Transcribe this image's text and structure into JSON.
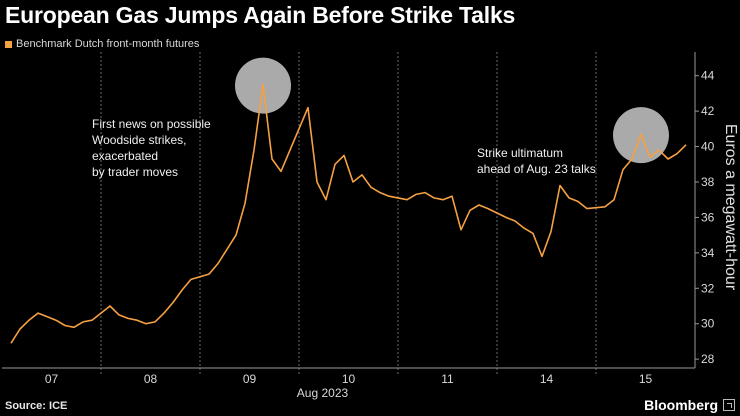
{
  "header": {
    "title": "European Gas Jumps Again Before Strike Talks"
  },
  "legend": {
    "label": "Benchmark Dutch front-month futures",
    "color": "#f5a043"
  },
  "footer": {
    "source": "Source: ICE",
    "brand": "Bloomberg"
  },
  "chart_data": {
    "type": "line",
    "title": "European Gas Jumps Again Before Strike Talks",
    "xlabel": "Aug 2023",
    "ylabel": "Euros a megawatt-hour",
    "ylim": [
      27.5,
      45
    ],
    "y_ticks": [
      28,
      30,
      32,
      34,
      36,
      38,
      40,
      42,
      44
    ],
    "x_tick_labels": [
      "07",
      "08",
      "09",
      "10",
      "11",
      "14",
      "15"
    ],
    "x_range": [
      "2023-08-07",
      "2023-08-16"
    ],
    "grid": "vertical day separators, dashed",
    "legend_position": "top-left",
    "series": [
      {
        "name": "Benchmark Dutch front-month futures",
        "color": "#f5a043",
        "x": [
          "2023-08-07 09:00",
          "2023-08-07 10:00",
          "2023-08-07 11:00",
          "2023-08-07 12:00",
          "2023-08-07 13:00",
          "2023-08-07 14:00",
          "2023-08-07 15:00",
          "2023-08-07 16:00",
          "2023-08-07 17:00",
          "2023-08-07 18:00",
          "2023-08-08 09:00",
          "2023-08-08 10:00",
          "2023-08-08 11:00",
          "2023-08-08 12:00",
          "2023-08-08 13:00",
          "2023-08-08 14:00",
          "2023-08-08 15:00",
          "2023-08-08 16:00",
          "2023-08-08 17:00",
          "2023-08-08 18:00",
          "2023-08-09 09:00",
          "2023-08-09 10:00",
          "2023-08-09 11:00",
          "2023-08-09 12:00",
          "2023-08-09 13:00",
          "2023-08-09 14:00",
          "2023-08-09 15:00",
          "2023-08-09 16:00",
          "2023-08-09 17:00",
          "2023-08-09 18:00",
          "2023-08-10 09:00",
          "2023-08-10 10:00",
          "2023-08-10 11:00",
          "2023-08-10 12:00",
          "2023-08-10 13:00",
          "2023-08-10 14:00",
          "2023-08-10 15:00",
          "2023-08-10 16:00",
          "2023-08-10 17:00",
          "2023-08-10 18:00",
          "2023-08-11 09:00",
          "2023-08-11 10:00",
          "2023-08-11 11:00",
          "2023-08-11 12:00",
          "2023-08-11 13:00",
          "2023-08-11 14:00",
          "2023-08-11 15:00",
          "2023-08-11 16:00",
          "2023-08-11 17:00",
          "2023-08-11 18:00",
          "2023-08-14 09:00",
          "2023-08-14 10:00",
          "2023-08-14 11:00",
          "2023-08-14 12:00",
          "2023-08-14 13:00",
          "2023-08-14 14:00",
          "2023-08-14 15:00",
          "2023-08-14 16:00",
          "2023-08-14 17:00",
          "2023-08-14 18:00",
          "2023-08-15 09:00",
          "2023-08-15 10:00",
          "2023-08-15 11:00",
          "2023-08-15 12:00",
          "2023-08-15 13:00",
          "2023-08-15 14:00",
          "2023-08-15 15:00",
          "2023-08-15 16:00",
          "2023-08-15 17:00",
          "2023-08-15 18:00"
        ],
        "values": [
          28.9,
          29.7,
          30.2,
          30.6,
          30.4,
          30.2,
          29.9,
          29.8,
          30.1,
          30.2,
          31.0,
          30.5,
          30.3,
          30.2,
          30.0,
          30.1,
          30.6,
          31.2,
          31.9,
          32.5,
          32.8,
          33.4,
          34.2,
          35.0,
          36.8,
          39.8,
          43.5,
          39.3,
          38.6,
          39.8,
          42.2,
          38.0,
          37.0,
          39.0,
          39.5,
          38.0,
          38.4,
          37.7,
          37.4,
          37.2,
          37.0,
          37.3,
          37.4,
          37.1,
          37.0,
          37.2,
          35.3,
          36.4,
          36.7,
          36.5,
          36.0,
          35.8,
          35.4,
          35.1,
          33.8,
          35.2,
          37.8,
          37.1,
          36.9,
          36.5,
          36.6,
          37.0,
          38.7,
          39.3,
          40.7,
          39.4,
          39.8,
          39.3,
          39.6,
          40.1
        ]
      }
    ],
    "annotations": [
      {
        "text": [
          "First news on possible",
          "Woodside strikes,",
          "exacerbated",
          "by trader moves"
        ],
        "x": "2023-08-09 15:00",
        "y": 43.5
      },
      {
        "text": [
          "Strike ultimatum",
          "ahead of Aug. 23 talks"
        ],
        "x": "2023-08-15 13:00",
        "y": 40.7
      }
    ]
  }
}
